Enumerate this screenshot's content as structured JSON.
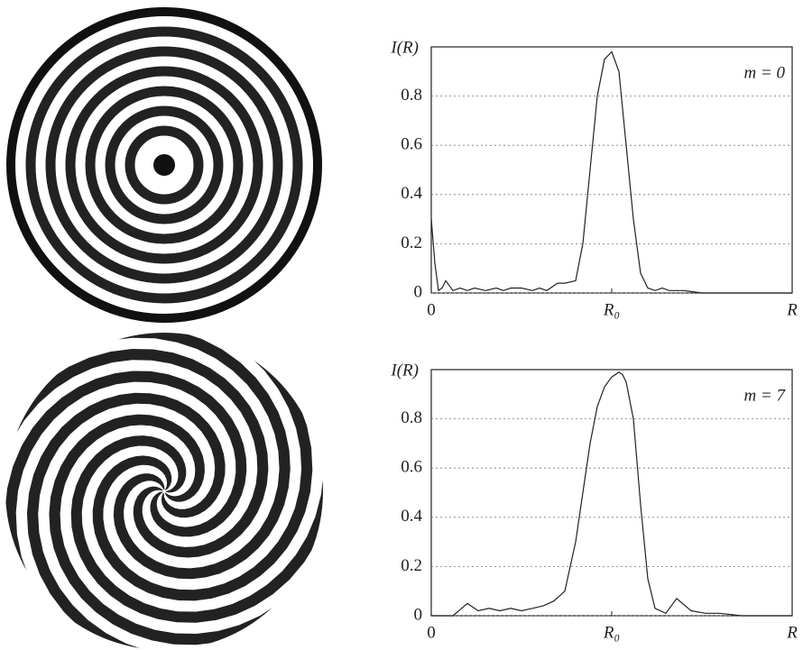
{
  "chart_data": [
    {
      "type": "line",
      "ylabel": "I(R)",
      "annotation": "m = 0",
      "x": [
        0,
        0.01,
        0.02,
        0.03,
        0.04,
        0.05,
        0.06,
        0.08,
        0.1,
        0.12,
        0.15,
        0.18,
        0.2,
        0.22,
        0.25,
        0.28,
        0.3,
        0.32,
        0.35,
        0.37,
        0.4,
        0.42,
        0.44,
        0.46,
        0.48,
        0.5,
        0.52,
        0.54,
        0.56,
        0.58,
        0.6,
        0.62,
        0.64,
        0.66,
        0.7,
        0.75,
        0.8,
        0.85,
        0.9,
        0.95,
        1.0
      ],
      "values": [
        0.3,
        0.12,
        0.01,
        0.02,
        0.05,
        0.03,
        0.01,
        0.02,
        0.01,
        0.02,
        0.01,
        0.02,
        0.01,
        0.02,
        0.02,
        0.01,
        0.02,
        0.01,
        0.04,
        0.04,
        0.05,
        0.2,
        0.5,
        0.8,
        0.95,
        0.98,
        0.9,
        0.6,
        0.3,
        0.08,
        0.02,
        0.01,
        0.02,
        0.01,
        0.01,
        0,
        0,
        0,
        0,
        0,
        0
      ],
      "color": "#222222",
      "xlim": [
        0,
        1
      ],
      "xticks": [
        0,
        {
          "value": 0.5,
          "label": "R₀"
        },
        {
          "value": 1,
          "label": "R"
        }
      ],
      "ylim": [
        0,
        1
      ],
      "yticks": [
        0,
        0.2,
        0.4,
        0.6,
        0.8
      ],
      "grid": true
    },
    {
      "type": "line",
      "ylabel": "I(R)",
      "annotation": "m = 7",
      "x": [
        0,
        0.06,
        0.1,
        0.13,
        0.16,
        0.19,
        0.22,
        0.25,
        0.28,
        0.31,
        0.34,
        0.37,
        0.4,
        0.42,
        0.44,
        0.46,
        0.48,
        0.5,
        0.52,
        0.53,
        0.54,
        0.56,
        0.58,
        0.6,
        0.62,
        0.65,
        0.68,
        0.72,
        0.76,
        0.8,
        0.86,
        0.9,
        0.95,
        1.0
      ],
      "values": [
        0,
        0,
        0.05,
        0.02,
        0.03,
        0.02,
        0.03,
        0.02,
        0.03,
        0.04,
        0.06,
        0.1,
        0.3,
        0.5,
        0.7,
        0.85,
        0.93,
        0.97,
        0.99,
        0.98,
        0.95,
        0.8,
        0.45,
        0.15,
        0.03,
        0.01,
        0.07,
        0.02,
        0.01,
        0.01,
        0,
        0,
        0,
        0
      ],
      "color": "#222222",
      "xlim": [
        0,
        1
      ],
      "xticks": [
        0,
        {
          "value": 0.5,
          "label": "R₀"
        },
        {
          "value": 1,
          "label": "R"
        }
      ],
      "ylim": [
        0,
        1
      ],
      "yticks": [
        0,
        0.2,
        0.4,
        0.6,
        0.8
      ],
      "grid": true
    }
  ]
}
